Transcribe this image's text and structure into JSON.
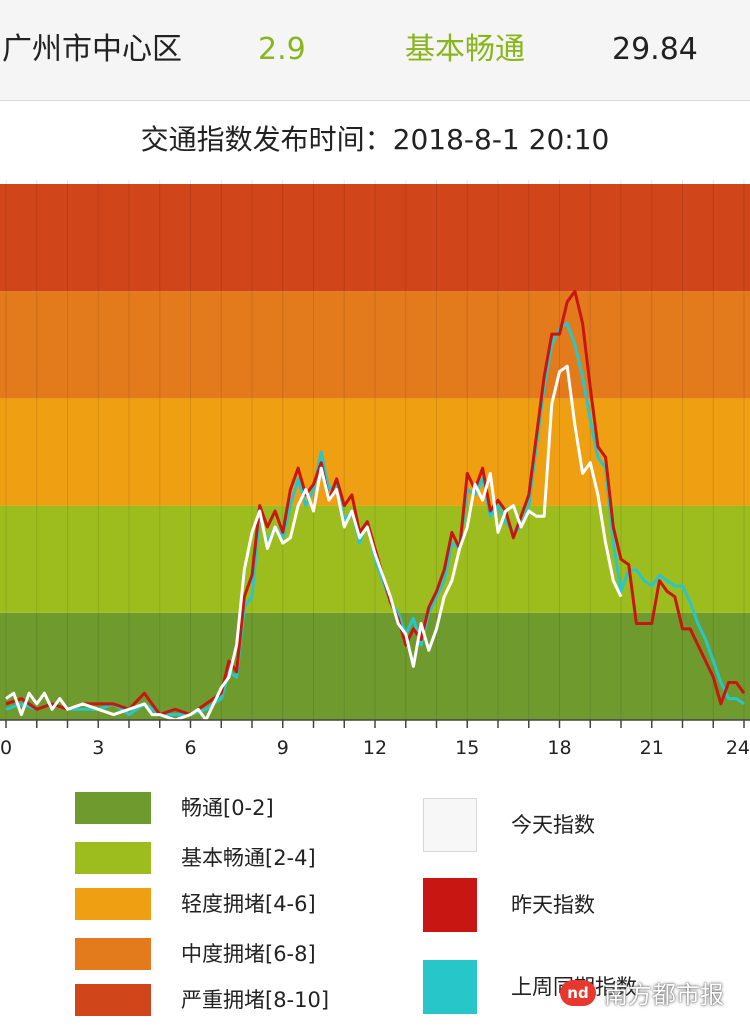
{
  "header": {
    "area": "广州市中心区",
    "index": "2.9",
    "status": "基本畅通",
    "speed": "29.84"
  },
  "publish": {
    "label": "交通指数发布时间：",
    "time": "2018-8-1 20:10"
  },
  "colors": {
    "band_smooth": "#6f9a2e",
    "band_basic": "#9dbd1e",
    "band_light": "#ef9f12",
    "band_medium": "#e37a1c",
    "band_severe": "#d04519",
    "today": "#ffffff",
    "yesterday": "#c81712",
    "last_week": "#27c7c9"
  },
  "chart_data": {
    "type": "line",
    "xlim": [
      0,
      24
    ],
    "ylim": [
      0,
      10
    ],
    "xticks": [
      "0",
      "3",
      "6",
      "9",
      "12",
      "15",
      "18",
      "21",
      "24"
    ],
    "bands": [
      {
        "label": "畅通[0-2]",
        "range": [
          0,
          2
        ]
      },
      {
        "label": "基本畅通[2-4]",
        "range": [
          2,
          4
        ]
      },
      {
        "label": "轻度拥堵[4-6]",
        "range": [
          4,
          6
        ]
      },
      {
        "label": "中度拥堵[6-8]",
        "range": [
          6,
          8
        ]
      },
      {
        "label": "严重拥堵[8-10]",
        "range": [
          8,
          10
        ]
      }
    ],
    "series": [
      {
        "name": "今天指数",
        "x": [
          0,
          0.25,
          0.5,
          0.75,
          1,
          1.25,
          1.5,
          1.75,
          2,
          2.5,
          3,
          3.5,
          4,
          4.5,
          4.75,
          5,
          5.5,
          6,
          6.25,
          6.5,
          6.75,
          7,
          7.25,
          7.5,
          7.75,
          8,
          8.25,
          8.5,
          8.75,
          9,
          9.25,
          9.5,
          9.75,
          10,
          10.25,
          10.5,
          10.75,
          11,
          11.25,
          11.5,
          11.75,
          12,
          12.25,
          12.5,
          12.75,
          13,
          13.25,
          13.5,
          13.75,
          14,
          14.25,
          14.5,
          14.75,
          15,
          15.25,
          15.5,
          15.75,
          16,
          16.25,
          16.5,
          16.75,
          17,
          17.25,
          17.5,
          17.75,
          18,
          18.25,
          18.5,
          18.75,
          19,
          19.25,
          19.5,
          19.75,
          20
        ],
        "values": [
          0.4,
          0.5,
          0.1,
          0.5,
          0.3,
          0.5,
          0.2,
          0.4,
          0.2,
          0.3,
          0.2,
          0.1,
          0.2,
          0.3,
          0.1,
          0.1,
          0.0,
          0.1,
          0.2,
          0.0,
          0.3,
          0.6,
          0.8,
          1.4,
          2.8,
          3.5,
          3.9,
          3.2,
          3.6,
          3.3,
          3.4,
          4.0,
          4.3,
          3.9,
          4.7,
          4.1,
          4.3,
          3.6,
          3.9,
          3.4,
          3.6,
          3.1,
          2.7,
          2.3,
          1.8,
          1.6,
          1.0,
          1.8,
          1.3,
          1.7,
          2.3,
          2.6,
          3.2,
          3.6,
          4.4,
          4.1,
          4.6,
          3.5,
          3.9,
          4.0,
          3.6,
          3.9,
          3.8,
          3.8,
          5.9,
          6.5,
          6.6,
          5.5,
          4.6,
          4.8,
          4.2,
          3.3,
          2.6,
          2.3
        ]
      },
      {
        "name": "昨天指数",
        "x": [
          0,
          0.5,
          1,
          1.5,
          2,
          2.5,
          3,
          3.5,
          4,
          4.5,
          5,
          5.5,
          6,
          6.5,
          7,
          7.25,
          7.5,
          7.75,
          8,
          8.25,
          8.5,
          8.75,
          9,
          9.25,
          9.5,
          9.75,
          10,
          10.25,
          10.5,
          10.75,
          11,
          11.25,
          11.5,
          11.75,
          12,
          12.25,
          12.5,
          12.75,
          13,
          13.25,
          13.5,
          13.75,
          14,
          14.25,
          14.5,
          14.75,
          15,
          15.25,
          15.5,
          15.75,
          16,
          16.25,
          16.5,
          16.75,
          17,
          17.25,
          17.5,
          17.75,
          18,
          18.25,
          18.5,
          18.75,
          19,
          19.25,
          19.5,
          19.75,
          20,
          20.25,
          20.5,
          20.75,
          21,
          21.25,
          21.5,
          21.75,
          22,
          22.25,
          22.5,
          22.75,
          23,
          23.25,
          23.5,
          23.75,
          24
        ],
        "values": [
          0.3,
          0.4,
          0.2,
          0.3,
          0.2,
          0.3,
          0.3,
          0.3,
          0.2,
          0.5,
          0.1,
          0.2,
          0.1,
          0.3,
          0.5,
          1.1,
          0.9,
          2.3,
          2.7,
          4.0,
          3.6,
          3.9,
          3.5,
          4.3,
          4.7,
          4.2,
          4.4,
          4.8,
          4.1,
          4.5,
          4.0,
          4.2,
          3.5,
          3.7,
          3.2,
          2.7,
          2.2,
          1.9,
          1.4,
          1.7,
          1.5,
          2.1,
          2.4,
          2.8,
          3.5,
          3.2,
          4.6,
          4.3,
          4.7,
          3.9,
          4.1,
          3.9,
          3.4,
          3.8,
          4.2,
          5.3,
          6.4,
          7.2,
          7.2,
          7.8,
          8.0,
          7.4,
          6.2,
          5.1,
          4.9,
          3.6,
          3.0,
          2.9,
          1.8,
          1.8,
          1.8,
          2.6,
          2.4,
          2.3,
          1.7,
          1.7,
          1.4,
          1.1,
          0.8,
          0.3,
          0.7,
          0.7,
          0.5
        ]
      },
      {
        "name": "上周同期指数",
        "x": [
          0,
          0.5,
          1,
          1.5,
          2,
          2.5,
          3,
          3.5,
          4,
          4.5,
          5,
          5.5,
          6,
          6.5,
          7,
          7.25,
          7.5,
          7.75,
          8,
          8.25,
          8.5,
          8.75,
          9,
          9.25,
          9.5,
          9.75,
          10,
          10.25,
          10.5,
          10.75,
          11,
          11.25,
          11.5,
          11.75,
          12,
          12.25,
          12.5,
          12.75,
          13,
          13.25,
          13.5,
          13.75,
          14,
          14.25,
          14.5,
          14.75,
          15,
          15.25,
          15.5,
          15.75,
          16,
          16.25,
          16.5,
          16.75,
          17,
          17.25,
          17.5,
          17.75,
          18,
          18.25,
          18.5,
          18.75,
          19,
          19.25,
          19.5,
          19.75,
          20,
          20.25,
          20.5,
          20.75,
          21,
          21.25,
          21.5,
          21.75,
          22,
          22.25,
          22.5,
          22.75,
          23,
          23.25,
          23.5,
          23.75,
          24
        ],
        "values": [
          0.2,
          0.3,
          0.2,
          0.3,
          0.2,
          0.2,
          0.2,
          0.3,
          0.1,
          0.3,
          0.1,
          0.1,
          0.1,
          0.2,
          0.4,
          0.9,
          0.8,
          2.1,
          2.3,
          3.8,
          3.3,
          3.6,
          3.4,
          4.0,
          4.5,
          4.0,
          4.3,
          5.0,
          4.3,
          4.4,
          3.7,
          3.9,
          3.3,
          3.7,
          3.0,
          2.6,
          2.2,
          2.0,
          1.6,
          1.9,
          1.4,
          2.0,
          2.3,
          2.6,
          3.3,
          3.2,
          4.3,
          4.2,
          4.5,
          3.8,
          4.0,
          3.7,
          3.5,
          3.6,
          4.0,
          5.1,
          6.2,
          7.0,
          7.3,
          7.4,
          7.0,
          6.4,
          5.6,
          4.9,
          4.7,
          3.3,
          2.4,
          2.8,
          2.8,
          2.6,
          2.5,
          2.7,
          2.6,
          2.5,
          2.5,
          2.2,
          1.8,
          1.5,
          1.1,
          0.7,
          0.4,
          0.4,
          0.3
        ]
      }
    ]
  }
}
